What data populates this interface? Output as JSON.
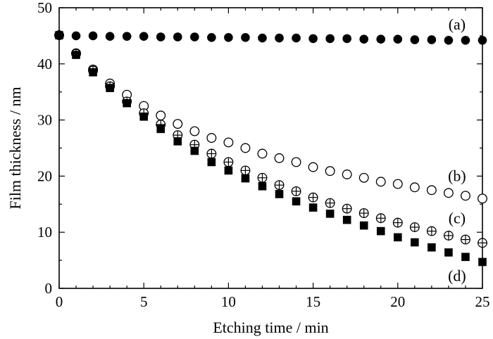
{
  "chart_data": {
    "type": "scatter",
    "title": "",
    "xlabel": "Etching time / min",
    "ylabel": "Film thickness / nm",
    "xlim": [
      0,
      25
    ],
    "ylim": [
      0,
      50
    ],
    "xticks": [
      0,
      5,
      10,
      15,
      20,
      25
    ],
    "yticks": [
      0,
      10,
      20,
      30,
      40,
      50
    ],
    "grid": false,
    "series": [
      {
        "name": "(a)",
        "marker": "filled-circle",
        "x": [
          0,
          1,
          2,
          3,
          4,
          5,
          6,
          7,
          8,
          9,
          10,
          11,
          12,
          13,
          14,
          15,
          16,
          17,
          18,
          19,
          20,
          21,
          22,
          23,
          24,
          25
        ],
        "y": [
          45.1,
          45.0,
          45.0,
          44.9,
          44.9,
          44.9,
          44.8,
          44.8,
          44.8,
          44.7,
          44.7,
          44.7,
          44.6,
          44.6,
          44.6,
          44.5,
          44.5,
          44.5,
          44.4,
          44.4,
          44.4,
          44.3,
          44.3,
          44.2,
          44.2,
          44.2
        ]
      },
      {
        "name": "(b)",
        "marker": "open-circle",
        "x": [
          0,
          1,
          2,
          3,
          4,
          5,
          6,
          7,
          8,
          9,
          10,
          11,
          12,
          13,
          14,
          15,
          16,
          17,
          18,
          19,
          20,
          21,
          22,
          23,
          24,
          25
        ],
        "y": [
          45.1,
          41.9,
          39.0,
          36.5,
          34.5,
          32.5,
          30.8,
          29.3,
          28.0,
          26.8,
          26.0,
          25.0,
          24.0,
          23.2,
          22.5,
          21.6,
          20.9,
          20.3,
          19.7,
          19.0,
          18.6,
          18.0,
          17.5,
          17.0,
          16.5,
          16.0
        ]
      },
      {
        "name": "(c)",
        "marker": "crossed-circle",
        "x": [
          0,
          1,
          2,
          3,
          4,
          5,
          6,
          7,
          8,
          9,
          10,
          11,
          12,
          13,
          14,
          15,
          16,
          17,
          18,
          19,
          20,
          21,
          22,
          23,
          24,
          25
        ],
        "y": [
          45.1,
          41.8,
          38.8,
          36.0,
          33.3,
          31.2,
          29.2,
          27.3,
          25.6,
          24.0,
          22.5,
          21.0,
          19.7,
          18.4,
          17.3,
          16.2,
          15.2,
          14.2,
          13.4,
          12.5,
          11.7,
          10.9,
          10.2,
          9.4,
          8.7,
          8.1
        ]
      },
      {
        "name": "(d)",
        "marker": "filled-square",
        "x": [
          0,
          1,
          2,
          3,
          4,
          5,
          6,
          7,
          8,
          9,
          10,
          11,
          12,
          13,
          14,
          15,
          16,
          17,
          18,
          19,
          20,
          21,
          22,
          23,
          24,
          25
        ],
        "y": [
          45.1,
          41.6,
          38.5,
          35.7,
          33.0,
          30.6,
          28.4,
          26.2,
          24.5,
          22.5,
          21.0,
          19.6,
          18.2,
          16.8,
          15.5,
          14.4,
          13.3,
          12.2,
          11.2,
          10.2,
          9.1,
          8.2,
          7.3,
          6.4,
          5.6,
          4.7
        ]
      }
    ],
    "annotations": [
      {
        "text": "(a)",
        "x": 23.5,
        "y": 47.0
      },
      {
        "text": "(b)",
        "x": 23.5,
        "y": 20.0
      },
      {
        "text": "(c)",
        "x": 23.5,
        "y": 12.5
      },
      {
        "text": "(d)",
        "x": 23.5,
        "y": 2.2
      }
    ]
  }
}
